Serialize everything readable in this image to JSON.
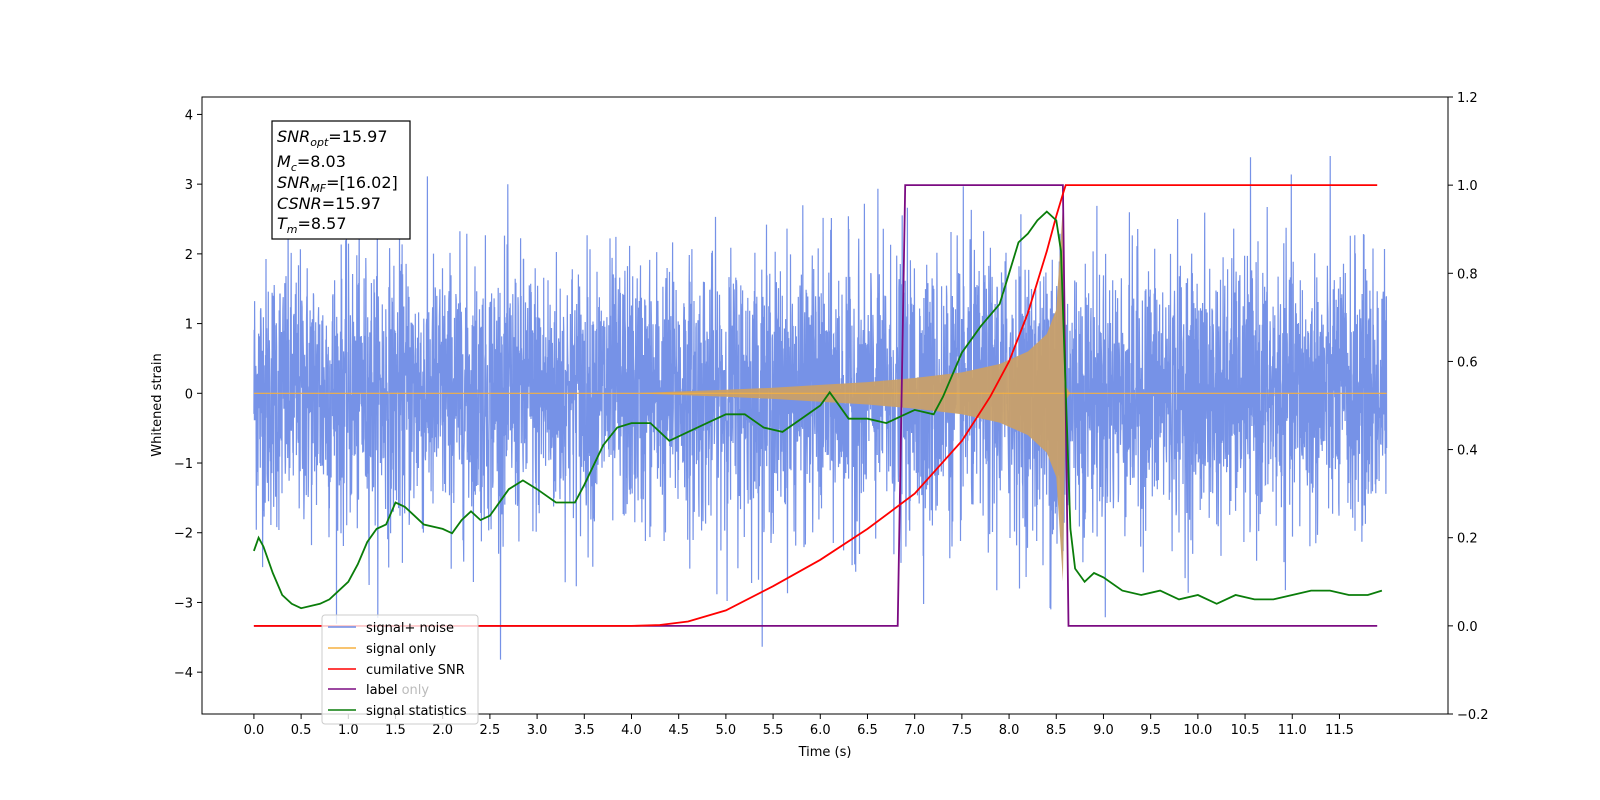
{
  "chart_data": {
    "type": "line",
    "xlabel": "Time (s)",
    "ylabel": "Whitened strain",
    "xlim": [
      -0.55,
      12.65
    ],
    "ylim": [
      -4.6,
      4.25
    ],
    "y2lim": [
      -0.2,
      1.2
    ],
    "xticks": [
      "0.0",
      "0.5",
      "1.0",
      "1.5",
      "2.0",
      "2.5",
      "3.0",
      "3.5",
      "4.0",
      "4.5",
      "5.0",
      "5.5",
      "6.0",
      "6.5",
      "7.0",
      "7.5",
      "8.0",
      "8.5",
      "9.0",
      "9.5",
      "10.0",
      "10.5",
      "11.0",
      "11.5"
    ],
    "yticks": [
      "4",
      "3",
      "2",
      "1",
      "0",
      "−1",
      "−2",
      "−3",
      "−4"
    ],
    "y2ticks": [
      "1.2",
      "1.0",
      "0.8",
      "0.6",
      "0.4",
      "0.2",
      "0.0",
      "−0.2"
    ],
    "info_box": {
      "snr_opt": "15.97",
      "mc": "8.03",
      "snr_mf": "[16.02]",
      "csnr": "15.97",
      "tm": "8.57"
    },
    "legend": [
      "signal+ noise",
      "signal only",
      "cumilative SNR",
      "label",
      "signal statistics"
    ],
    "legend_ghost_text": "label only",
    "label_only_ghost": "label only",
    "colors": {
      "noise": "#6f8ce6",
      "signal": "#f5b041",
      "signal_fill": "#c8a06a",
      "snr": "#ff0000",
      "label": "#7b0b82",
      "stats": "#0a7d0a"
    },
    "series": [
      {
        "name": "signal+ noise",
        "description_axis": "left",
        "x_range": [
          0.0,
          12.0
        ],
        "amplitude_envelope": 2.6
      },
      {
        "name": "signal only",
        "description_axis": "left",
        "chirp_start": 4.0,
        "merger_time": 8.57,
        "envelope": [
          [
            4.0,
            0.0
          ],
          [
            5.0,
            0.05
          ],
          [
            5.5,
            0.08
          ],
          [
            6.0,
            0.12
          ],
          [
            6.5,
            0.16
          ],
          [
            7.0,
            0.22
          ],
          [
            7.5,
            0.3
          ],
          [
            7.9,
            0.42
          ],
          [
            8.2,
            0.6
          ],
          [
            8.4,
            0.85
          ],
          [
            8.5,
            1.2
          ],
          [
            8.57,
            2.7
          ],
          [
            8.6,
            0.1
          ],
          [
            8.65,
            0.0
          ]
        ]
      },
      {
        "name": "cumilative SNR",
        "description_axis": "right",
        "points": [
          [
            0.0,
            0.0
          ],
          [
            4.0,
            0.0
          ],
          [
            4.3,
            0.002
          ],
          [
            4.6,
            0.01
          ],
          [
            5.0,
            0.035
          ],
          [
            5.5,
            0.09
          ],
          [
            6.0,
            0.15
          ],
          [
            6.5,
            0.22
          ],
          [
            7.0,
            0.3
          ],
          [
            7.5,
            0.42
          ],
          [
            7.8,
            0.52
          ],
          [
            8.0,
            0.6
          ],
          [
            8.2,
            0.71
          ],
          [
            8.4,
            0.85
          ],
          [
            8.5,
            0.93
          ],
          [
            8.57,
            0.98
          ],
          [
            8.6,
            1.0
          ],
          [
            11.9,
            1.0
          ]
        ]
      },
      {
        "name": "label",
        "description_axis": "right",
        "points": [
          [
            0.0,
            0.0
          ],
          [
            6.82,
            0.0
          ],
          [
            6.9,
            1.0
          ],
          [
            8.57,
            1.0
          ],
          [
            8.63,
            0.0
          ],
          [
            11.9,
            0.0
          ]
        ]
      },
      {
        "name": "signal statistics",
        "description_axis": "right",
        "points": [
          [
            0.0,
            0.17
          ],
          [
            0.05,
            0.2
          ],
          [
            0.1,
            0.18
          ],
          [
            0.2,
            0.12
          ],
          [
            0.3,
            0.07
          ],
          [
            0.4,
            0.05
          ],
          [
            0.5,
            0.04
          ],
          [
            0.7,
            0.05
          ],
          [
            0.8,
            0.06
          ],
          [
            1.0,
            0.1
          ],
          [
            1.1,
            0.14
          ],
          [
            1.2,
            0.19
          ],
          [
            1.3,
            0.22
          ],
          [
            1.4,
            0.23
          ],
          [
            1.5,
            0.28
          ],
          [
            1.6,
            0.27
          ],
          [
            1.7,
            0.25
          ],
          [
            1.8,
            0.23
          ],
          [
            2.0,
            0.22
          ],
          [
            2.1,
            0.21
          ],
          [
            2.2,
            0.24
          ],
          [
            2.3,
            0.26
          ],
          [
            2.4,
            0.24
          ],
          [
            2.5,
            0.25
          ],
          [
            2.7,
            0.31
          ],
          [
            2.85,
            0.33
          ],
          [
            3.0,
            0.31
          ],
          [
            3.2,
            0.28
          ],
          [
            3.4,
            0.28
          ],
          [
            3.5,
            0.32
          ],
          [
            3.7,
            0.41
          ],
          [
            3.85,
            0.45
          ],
          [
            4.0,
            0.46
          ],
          [
            4.2,
            0.46
          ],
          [
            4.4,
            0.42
          ],
          [
            4.6,
            0.44
          ],
          [
            4.8,
            0.46
          ],
          [
            5.0,
            0.48
          ],
          [
            5.2,
            0.48
          ],
          [
            5.4,
            0.45
          ],
          [
            5.6,
            0.44
          ],
          [
            5.8,
            0.47
          ],
          [
            6.0,
            0.5
          ],
          [
            6.1,
            0.53
          ],
          [
            6.2,
            0.5
          ],
          [
            6.3,
            0.47
          ],
          [
            6.5,
            0.47
          ],
          [
            6.7,
            0.46
          ],
          [
            6.9,
            0.48
          ],
          [
            7.0,
            0.49
          ],
          [
            7.2,
            0.48
          ],
          [
            7.3,
            0.52
          ],
          [
            7.5,
            0.62
          ],
          [
            7.7,
            0.68
          ],
          [
            7.9,
            0.73
          ],
          [
            8.0,
            0.8
          ],
          [
            8.1,
            0.87
          ],
          [
            8.2,
            0.89
          ],
          [
            8.3,
            0.92
          ],
          [
            8.4,
            0.94
          ],
          [
            8.5,
            0.92
          ],
          [
            8.55,
            0.85
          ],
          [
            8.65,
            0.22
          ],
          [
            8.7,
            0.13
          ],
          [
            8.8,
            0.1
          ],
          [
            8.9,
            0.12
          ],
          [
            9.0,
            0.11
          ],
          [
            9.2,
            0.08
          ],
          [
            9.4,
            0.07
          ],
          [
            9.6,
            0.08
          ],
          [
            9.8,
            0.06
          ],
          [
            10.0,
            0.07
          ],
          [
            10.2,
            0.05
          ],
          [
            10.4,
            0.07
          ],
          [
            10.6,
            0.06
          ],
          [
            10.8,
            0.06
          ],
          [
            11.0,
            0.07
          ],
          [
            11.2,
            0.08
          ],
          [
            11.4,
            0.08
          ],
          [
            11.6,
            0.07
          ],
          [
            11.8,
            0.07
          ],
          [
            11.95,
            0.08
          ]
        ]
      }
    ]
  }
}
